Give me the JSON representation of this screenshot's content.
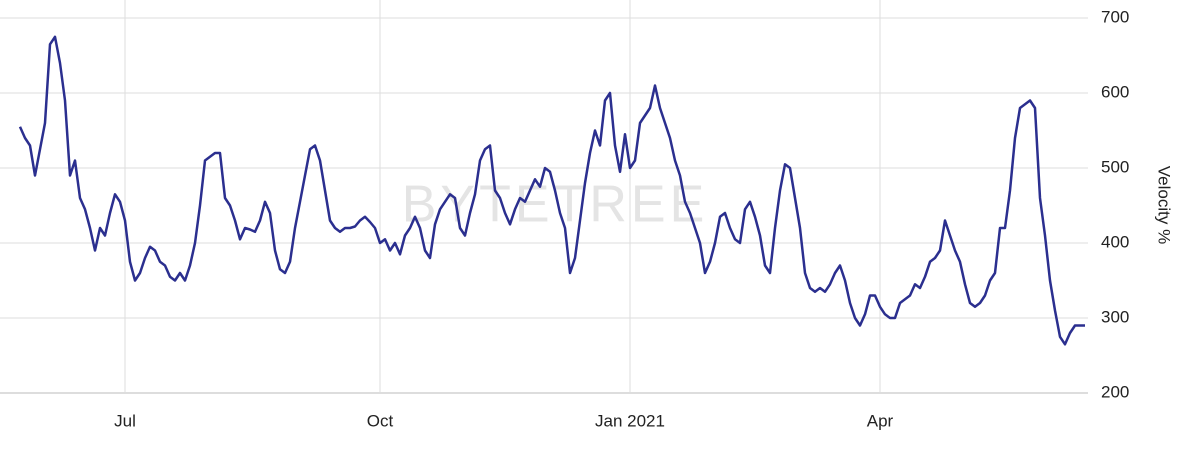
{
  "chart_data": {
    "type": "line",
    "y_label": "Velocity %",
    "watermark": "BYTETREE",
    "categories": [
      null,
      null,
      null,
      null,
      null,
      null,
      null,
      null,
      null,
      null,
      null,
      null,
      null,
      null,
      null,
      null,
      null,
      null,
      null,
      null,
      null,
      "Jul",
      null,
      null,
      null,
      null,
      null,
      null,
      null,
      null,
      null,
      null,
      null,
      null,
      null,
      null,
      null,
      null,
      null,
      null,
      null,
      null,
      null,
      null,
      null,
      null,
      null,
      null,
      null,
      null,
      null,
      null,
      null,
      null,
      null,
      null,
      null,
      null,
      null,
      null,
      null,
      null,
      null,
      null,
      null,
      null,
      null,
      null,
      null,
      null,
      null,
      null,
      "Oct",
      null,
      null,
      null,
      null,
      null,
      null,
      null,
      null,
      null,
      null,
      null,
      null,
      null,
      null,
      null,
      null,
      null,
      null,
      null,
      null,
      null,
      null,
      null,
      null,
      null,
      null,
      null,
      null,
      null,
      null,
      null,
      null,
      null,
      null,
      null,
      null,
      null,
      null,
      null,
      null,
      null,
      null,
      null,
      null,
      null,
      null,
      null,
      null,
      null,
      "Jan 2021",
      null,
      null,
      null,
      null,
      null,
      null,
      null,
      null,
      null,
      null,
      null,
      null,
      null,
      null,
      null,
      null,
      null,
      null,
      null,
      null,
      null,
      null,
      null,
      null,
      null,
      null,
      null,
      null,
      null,
      null,
      null,
      null,
      null,
      null,
      null,
      null,
      null,
      null,
      null,
      null,
      null,
      null,
      null,
      null,
      null,
      null,
      null,
      null,
      null,
      "Apr",
      null,
      null,
      null,
      null,
      null,
      null,
      null,
      null,
      null,
      null,
      null,
      null,
      null,
      null,
      null,
      null,
      null,
      null,
      null,
      null,
      null,
      null,
      null,
      null,
      null,
      null,
      null,
      null,
      null,
      null,
      null,
      null,
      null,
      null,
      null,
      null,
      null,
      null,
      null,
      null,
      null
    ],
    "series": [
      {
        "name": "Velocity",
        "color": "#2b2f8f",
        "values": [
          555,
          540,
          530,
          490,
          525,
          560,
          665,
          675,
          640,
          590,
          490,
          510,
          460,
          445,
          420,
          390,
          420,
          410,
          440,
          465,
          455,
          430,
          375,
          350,
          360,
          380,
          395,
          390,
          375,
          370,
          355,
          350,
          360,
          350,
          370,
          400,
          450,
          510,
          515,
          520,
          520,
          460,
          450,
          430,
          405,
          420,
          418,
          415,
          430,
          455,
          440,
          390,
          365,
          360,
          375,
          420,
          455,
          490,
          525,
          530,
          510,
          470,
          430,
          420,
          415,
          420,
          420,
          422,
          430,
          435,
          428,
          420,
          400,
          405,
          390,
          400,
          385,
          410,
          420,
          435,
          420,
          390,
          380,
          425,
          445,
          455,
          465,
          460,
          420,
          410,
          440,
          465,
          510,
          525,
          530,
          470,
          460,
          440,
          425,
          445,
          460,
          455,
          470,
          485,
          475,
          500,
          495,
          470,
          440,
          420,
          360,
          380,
          430,
          480,
          520,
          550,
          530,
          590,
          600,
          530,
          495,
          545,
          500,
          510,
          560,
          570,
          580,
          610,
          580,
          560,
          540,
          510,
          490,
          455,
          440,
          420,
          400,
          360,
          375,
          400,
          435,
          440,
          420,
          405,
          400,
          445,
          455,
          435,
          410,
          370,
          360,
          420,
          470,
          505,
          500,
          460,
          420,
          360,
          340,
          335,
          340,
          335,
          345,
          360,
          370,
          350,
          320,
          300,
          290,
          305,
          330,
          330,
          315,
          305,
          300,
          300,
          320,
          325,
          330,
          345,
          340,
          355,
          375,
          380,
          390,
          430,
          410,
          390,
          375,
          345,
          320,
          315,
          320,
          330,
          350,
          360,
          420,
          420,
          470,
          540,
          580,
          585,
          590,
          580,
          460,
          410,
          350,
          310,
          275,
          265,
          280,
          290,
          290,
          290
        ]
      }
    ],
    "ylim": [
      200,
      700
    ],
    "yticks": [
      200,
      300,
      400,
      500,
      600,
      700
    ],
    "grid": true
  }
}
